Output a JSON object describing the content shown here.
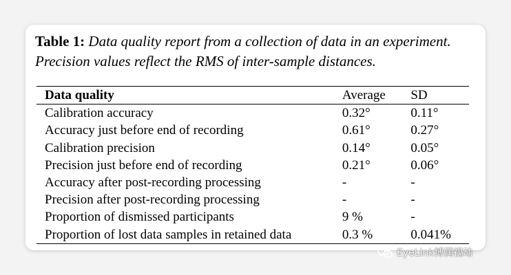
{
  "caption": {
    "label": "Table 1:",
    "text": "Data quality report from a collection of data in an experiment. Precision values reflect the RMS of inter-sample distances."
  },
  "table": {
    "headers": [
      "Data quality",
      "Average",
      "SD"
    ],
    "rows": [
      [
        "Calibration accuracy",
        "0.32°",
        "0.11°"
      ],
      [
        "Accuracy just before end of recording",
        "0.61°",
        "0.27°"
      ],
      [
        "Calibration precision",
        "0.14°",
        "0.05°"
      ],
      [
        "Precision just before end of recording",
        "0.21°",
        "0.06°"
      ],
      [
        "Accuracy after post-recording processing",
        "-",
        "-"
      ],
      [
        "Precision after post-recording processing",
        "-",
        "-"
      ],
      [
        "Proportion of dismissed participants",
        "9 %",
        "-"
      ],
      [
        "Proportion of lost data samples in retained data",
        "0.3 %",
        "0.041%"
      ]
    ]
  },
  "watermark": {
    "text": "EyeLink博润视动",
    "icon": "wechat-icon"
  },
  "colors": {
    "background": "#f3f3f3",
    "card": "#ffffff",
    "rules": "#000000"
  }
}
